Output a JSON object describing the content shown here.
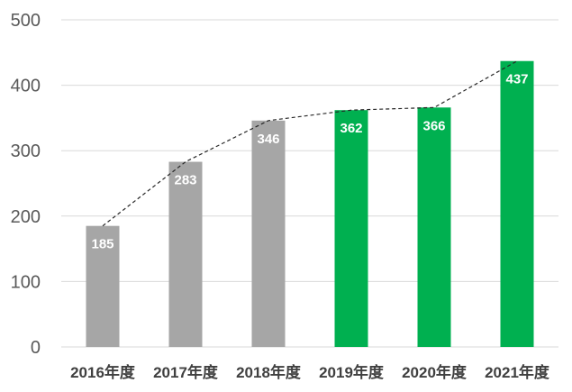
{
  "chart_data": {
    "type": "bar",
    "title": "",
    "xlabel": "",
    "ylabel": "",
    "categories": [
      "2016年度",
      "2017年度",
      "2018年度",
      "2019年度",
      "2020年度",
      "2021年度"
    ],
    "values": [
      185,
      283,
      346,
      362,
      366,
      437
    ],
    "bar_colors": [
      "#a6a6a6",
      "#a6a6a6",
      "#a6a6a6",
      "#00b050",
      "#00b050",
      "#00b050"
    ],
    "ylim": [
      0,
      500
    ],
    "yticks": [
      0,
      100,
      200,
      300,
      400,
      500
    ],
    "grid": true,
    "legend": "none",
    "data_labels": true,
    "overlay": {
      "type": "line",
      "style": "dashed",
      "color": "#262626",
      "follows": "bar tops"
    }
  }
}
